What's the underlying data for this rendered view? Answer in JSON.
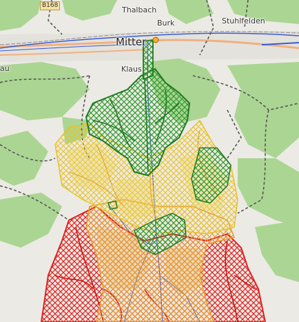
{
  "map": {
    "labels": {
      "thalbach": "Thalbach",
      "burk": "Burk",
      "stuhlfelden": "Stuhlfelden",
      "mittersill": "Mitter",
      "klaus": "Klaus",
      "left_edge": "au",
      "road_shield": "B168"
    },
    "colors": {
      "forest": "#a8d48f",
      "background": "#eceae4",
      "hatch_green": "#2f9a2f",
      "hatch_yellow": "#e8c22a",
      "hatch_orange": "#e89a2a",
      "hatch_red": "#e02020",
      "water": "#3a5ad0",
      "road": "#f0b080",
      "boundary": "#555555"
    }
  }
}
